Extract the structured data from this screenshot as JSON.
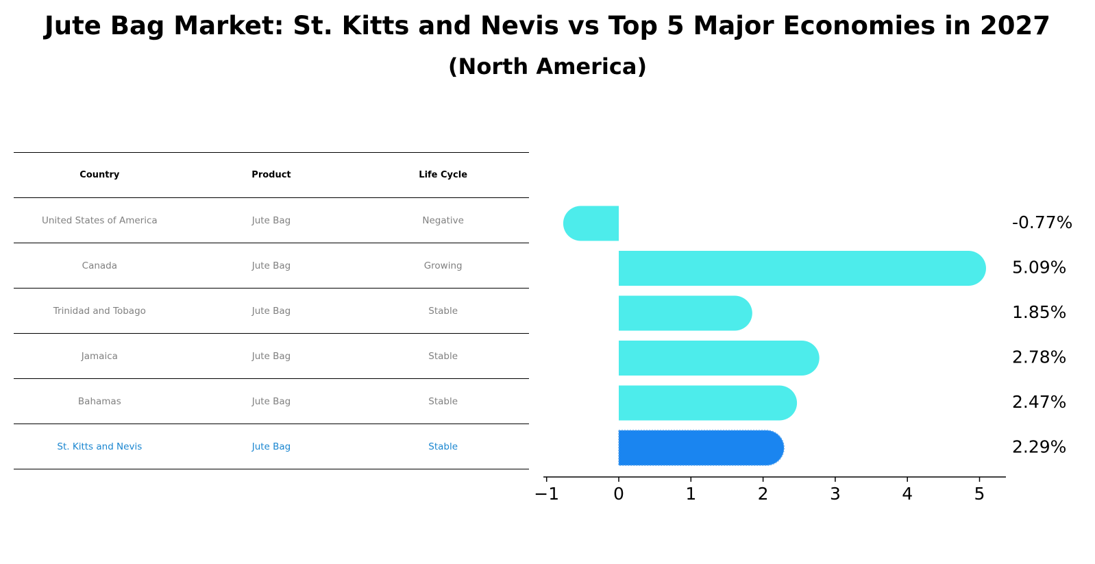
{
  "title": "Jute Bag Market: St. Kitts and Nevis vs Top 5 Major Economies in 2027",
  "subtitle": "(North America)",
  "table": {
    "headers": [
      "Country",
      "Product",
      "Life Cycle"
    ],
    "rows": [
      {
        "country": "United States of America",
        "product": "Jute Bag",
        "life_cycle": "Negative"
      },
      {
        "country": "Canada",
        "product": "Jute Bag",
        "life_cycle": "Growing"
      },
      {
        "country": "Trinidad and Tobago",
        "product": "Jute Bag",
        "life_cycle": "Stable"
      },
      {
        "country": "Jamaica",
        "product": "Jute Bag",
        "life_cycle": "Stable"
      },
      {
        "country": "Bahamas",
        "product": "Jute Bag",
        "life_cycle": "Stable"
      },
      {
        "country": "St. Kitts and Nevis",
        "product": "Jute Bag",
        "life_cycle": "Stable"
      }
    ]
  },
  "colors": {
    "bar": "#4deceb",
    "highlight_bar": "#1a85f0",
    "highlight_text": "#1a86d0",
    "muted_text": "#808080"
  },
  "chart_data": {
    "type": "bar",
    "orientation": "horizontal",
    "categories": [
      "United States of America",
      "Canada",
      "Trinidad and Tobago",
      "Jamaica",
      "Bahamas",
      "St. Kitts and Nevis"
    ],
    "values": [
      -0.77,
      5.09,
      1.85,
      2.78,
      2.47,
      2.29
    ],
    "value_labels": [
      "-0.77%",
      "5.09%",
      "1.85%",
      "2.78%",
      "2.47%",
      "2.29%"
    ],
    "highlight": "St. Kitts and Nevis",
    "xticks": [
      -1,
      0,
      1,
      2,
      3,
      4,
      5
    ],
    "xtick_labels": [
      "−1",
      "0",
      "1",
      "2",
      "3",
      "4",
      "5"
    ],
    "xlim": [
      -1.05,
      5.4
    ],
    "xlabel": "",
    "ylabel": ""
  }
}
